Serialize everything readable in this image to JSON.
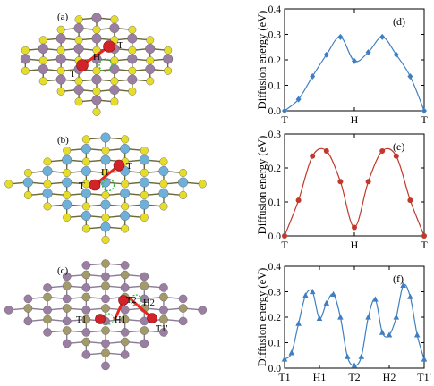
{
  "colors": {
    "yellow_atom": "#e6dc2a",
    "purple_atom": "#9b7fa3",
    "blue_atom": "#6fb0d9",
    "olive_atom": "#a39a6c",
    "bond_dark": "#6a6a3a",
    "red_atom": "#d3232a",
    "green_site": "#39b54a",
    "arrow": "#e8261c",
    "line_blue": "#3f7fc1",
    "line_red": "#c0392b"
  },
  "structures": [
    {
      "panel_label": "(a)",
      "labels": [
        "T",
        "H",
        "T"
      ]
    },
    {
      "panel_label": "(b)",
      "labels": [
        "T",
        "H",
        "T"
      ]
    },
    {
      "panel_label": "(c)",
      "labels": [
        "T1",
        "H1",
        "T2",
        "H2",
        "T1'"
      ]
    }
  ],
  "chart_data": [
    {
      "type": "line",
      "panel_label": "(d)",
      "ylabel": "Diffusion energy (eV)",
      "ylim": [
        0.0,
        0.4
      ],
      "yticks": [
        "0.0",
        "0.1",
        "0.2",
        "0.3",
        "0.4"
      ],
      "xlim": [
        0,
        10
      ],
      "x_tick_labels": [
        {
          "x": 0,
          "label": "T"
        },
        {
          "x": 5,
          "label": "H"
        },
        {
          "x": 10,
          "label": "T"
        }
      ],
      "marker": "diamond",
      "series": [
        {
          "x": [
            0,
            1,
            2,
            3,
            4,
            5,
            6,
            7,
            8,
            9,
            10
          ],
          "values": [
            0.0,
            0.045,
            0.135,
            0.22,
            0.29,
            0.195,
            0.23,
            0.29,
            0.22,
            0.135,
            0.0
          ]
        }
      ]
    },
    {
      "type": "line",
      "panel_label": "(e)",
      "ylabel": "Diffusion energy (eV)",
      "ylim": [
        0.0,
        0.3
      ],
      "yticks": [
        "0.0",
        "0.1",
        "0.2",
        "0.3"
      ],
      "xlim": [
        0,
        10
      ],
      "x_tick_labels": [
        {
          "x": 0,
          "label": "T"
        },
        {
          "x": 5,
          "label": "H"
        },
        {
          "x": 10,
          "label": "T"
        }
      ],
      "marker": "circle",
      "series": [
        {
          "x": [
            0,
            1,
            2,
            3,
            4,
            5,
            6,
            7,
            8,
            9,
            10
          ],
          "values": [
            0.0,
            0.105,
            0.235,
            0.25,
            0.16,
            0.025,
            0.16,
            0.25,
            0.235,
            0.105,
            0.0
          ]
        }
      ]
    },
    {
      "type": "line",
      "panel_label": "(f)",
      "ylabel": "Diffusion energy (eV)",
      "ylim": [
        0.0,
        0.4
      ],
      "yticks": [
        "0.0",
        "0.1",
        "0.2",
        "0.3",
        "0.4"
      ],
      "xlim": [
        0,
        20
      ],
      "x_tick_labels": [
        {
          "x": 0,
          "label": "T1"
        },
        {
          "x": 5,
          "label": "H1"
        },
        {
          "x": 10,
          "label": "T2"
        },
        {
          "x": 15,
          "label": "H2"
        },
        {
          "x": 20,
          "label": "T1'"
        }
      ],
      "marker": "triangle",
      "series": [
        {
          "x": [
            0,
            1,
            2,
            3,
            4,
            5,
            6,
            7,
            8,
            9,
            10,
            11,
            12,
            13,
            14,
            15,
            16,
            17,
            18,
            19,
            20
          ],
          "values": [
            0.035,
            0.06,
            0.175,
            0.285,
            0.3,
            0.195,
            0.255,
            0.29,
            0.2,
            0.045,
            0.01,
            0.045,
            0.2,
            0.27,
            0.14,
            0.13,
            0.2,
            0.325,
            0.28,
            0.13,
            0.035
          ]
        }
      ]
    }
  ]
}
